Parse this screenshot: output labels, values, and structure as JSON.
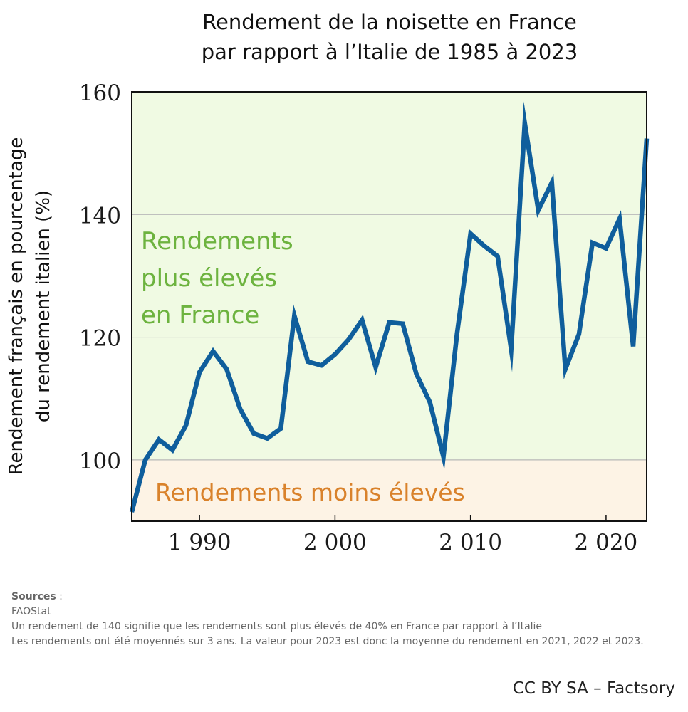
{
  "chart_data": {
    "type": "line",
    "title": [
      "Rendement de la noisette en France",
      "par rapport à l’Italie de 1985 à 2023"
    ],
    "xlabel": "",
    "ylabel": [
      "Rendement français en pourcentage",
      "du rendement italien (%)"
    ],
    "xlim": [
      1985,
      2023
    ],
    "ylim": [
      90,
      160
    ],
    "xticks": [
      1990,
      2000,
      2010,
      2020
    ],
    "xtick_labels": [
      "1 990",
      "2 000",
      "2 010",
      "2 020"
    ],
    "yticks": [
      100,
      120,
      140,
      160
    ],
    "ytick_labels": [
      "100",
      "120",
      "140",
      "160"
    ],
    "grid": true,
    "regions": [
      {
        "label": [
          "Rendements",
          "plus élevés",
          "en France"
        ],
        "from": 100,
        "to": 160,
        "fill": "#f0fae3",
        "text_color": "#6db33f"
      },
      {
        "label": [
          "Rendements moins élevés"
        ],
        "from": 90,
        "to": 100,
        "fill": "#fdf3e5",
        "text_color": "#d9822b"
      }
    ],
    "series": [
      {
        "name": "Rendement France / Italie",
        "color": "#0f5e9c",
        "x": [
          1985,
          1986,
          1987,
          1988,
          1989,
          1990,
          1991,
          1992,
          1993,
          1994,
          1995,
          1996,
          1997,
          1998,
          1999,
          2000,
          2001,
          2002,
          2003,
          2004,
          2005,
          2006,
          2007,
          2008,
          2009,
          2010,
          2011,
          2012,
          2013,
          2014,
          2015,
          2016,
          2017,
          2018,
          2019,
          2020,
          2021,
          2022,
          2023
        ],
        "values": [
          91.5,
          100,
          103.3,
          101.6,
          105.6,
          114.3,
          117.7,
          114.8,
          108.3,
          104.3,
          103.5,
          105.1,
          123.5,
          116.0,
          115.4,
          117.2,
          119.6,
          122.8,
          115.1,
          122.4,
          122.2,
          114.0,
          109.4,
          100.5,
          120.5,
          136.9,
          134.9,
          133.2,
          118.0,
          154.9,
          140.7,
          145.2,
          114.8,
          120.5,
          135.4,
          134.5,
          139.3,
          118.5,
          152.4
        ]
      }
    ]
  },
  "notes": {
    "sources_title": "Sources",
    "sources_colon": " :",
    "lines": [
      "FAOStat",
      "Un rendement de 140 signifie que les rendements sont plus élevés de 40% en France par rapport à l’Italie",
      "Les rendements ont été moyennés sur 3 ans. La valeur pour 2023 est donc la moyenne du rendement en 2021, 2022 et 2023."
    ]
  },
  "credit": "CC BY SA – Factsory"
}
